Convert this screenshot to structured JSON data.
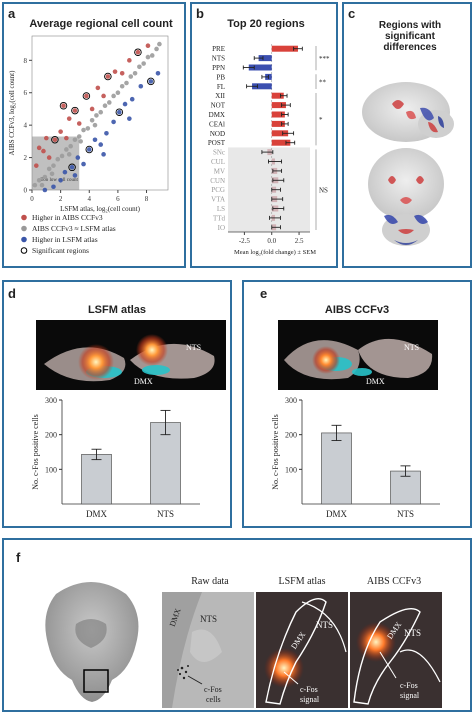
{
  "panel_a": {
    "label": "a",
    "title": "Average regional cell count",
    "ylabel": "AIBS CCFv3, log₂(cell count)",
    "xlabel": "LSFM atlas, log₂(cell count)",
    "box_annotation": "Too low cell count",
    "legend": [
      {
        "label": "Higher in AIBS CCFv3",
        "color": "#c0504d"
      },
      {
        "label": "AIBS CCFv3 ≈ LSFM atlas",
        "color": "#999999"
      },
      {
        "label": "Higher in LSFM atlas",
        "color": "#3a55a8"
      },
      {
        "label": "Significant regions",
        "color": "#000000"
      }
    ]
  },
  "panel_b": {
    "label": "b",
    "title": "Top 20 regions",
    "xlabel": "Mean log₂(fold change) ± SEM",
    "sig_marks": [
      "***",
      "**",
      "*",
      "NS"
    ]
  },
  "panel_c": {
    "label": "c",
    "title": "Regions with significant differences"
  },
  "panel_d": {
    "label": "d",
    "title": "LSFM atlas",
    "img_labels": {
      "nts": "NTS",
      "dmx": "DMX"
    },
    "ylabel": "No. c-Fos positive cells"
  },
  "panel_e": {
    "label": "e",
    "title": "AIBS CCFv3",
    "img_labels": {
      "nts": "NTS",
      "dmx": "DMX"
    },
    "ylabel": "No. c-Fos positive cells"
  },
  "panel_f": {
    "label": "f",
    "col_titles": [
      "Raw data",
      "LSFM atlas",
      "AIBS CCFv3"
    ],
    "raw": {
      "dmx": "DMX",
      "nts": "NTS",
      "cfos": "c-Fos",
      "cells": "cells"
    },
    "lsfm": {
      "dmx": "DMX",
      "nts": "NTS",
      "cfos": "c-Fos",
      "signal": "signal"
    },
    "aibs": {
      "dmx": "DMX",
      "nts": "NTS",
      "cfos": "c-Fos",
      "signal": "signal"
    }
  },
  "chart_data": [
    {
      "id": "a",
      "type": "scatter",
      "title": "Average regional cell count",
      "xlabel": "LSFM atlas, log₂(cell count)",
      "ylabel": "AIBS CCFv3, log₂(cell count)",
      "xlim": [
        0,
        9.5
      ],
      "ylim": [
        0,
        9.5
      ],
      "xticks": [
        0,
        2,
        4,
        6,
        8
      ],
      "yticks": [
        0,
        2,
        4,
        6,
        8
      ],
      "series": [
        {
          "name": "Higher in AIBS CCFv3",
          "points": [
            [
              0.3,
              1.5
            ],
            [
              0.8,
              2.4
            ],
            [
              1.2,
              2.0
            ],
            [
              1.6,
              3.1
            ],
            [
              2.0,
              3.6
            ],
            [
              2.4,
              3.2
            ],
            [
              2.6,
              4.4
            ],
            [
              3.0,
              4.9
            ],
            [
              3.3,
              4.1
            ],
            [
              3.8,
              5.8
            ],
            [
              4.2,
              5.0
            ],
            [
              4.6,
              6.3
            ],
            [
              5.0,
              5.8
            ],
            [
              5.3,
              7.0
            ],
            [
              5.8,
              7.3
            ],
            [
              6.3,
              7.2
            ],
            [
              6.8,
              8.0
            ],
            [
              7.4,
              8.5
            ],
            [
              8.1,
              8.9
            ],
            [
              1.0,
              3.2
            ],
            [
              2.2,
              5.2
            ],
            [
              0.5,
              2.6
            ]
          ]
        },
        {
          "name": "AIBS CCFv3 ≈ LSFM atlas",
          "points": [
            [
              0.2,
              0.3
            ],
            [
              0.5,
              0.6
            ],
            [
              0.9,
              0.8
            ],
            [
              1.2,
              1.3
            ],
            [
              1.5,
              1.5
            ],
            [
              1.8,
              1.9
            ],
            [
              2.1,
              2.1
            ],
            [
              2.4,
              2.5
            ],
            [
              2.7,
              2.7
            ],
            [
              3.0,
              3.1
            ],
            [
              3.3,
              3.3
            ],
            [
              3.6,
              3.7
            ],
            [
              3.9,
              3.8
            ],
            [
              4.2,
              4.3
            ],
            [
              4.5,
              4.6
            ],
            [
              4.8,
              4.8
            ],
            [
              5.1,
              5.2
            ],
            [
              5.4,
              5.4
            ],
            [
              5.7,
              5.8
            ],
            [
              6.0,
              6.0
            ],
            [
              6.3,
              6.4
            ],
            [
              6.6,
              6.6
            ],
            [
              6.9,
              7.0
            ],
            [
              7.2,
              7.2
            ],
            [
              7.5,
              7.6
            ],
            [
              7.8,
              7.8
            ],
            [
              8.1,
              8.2
            ],
            [
              8.4,
              8.3
            ],
            [
              8.7,
              8.7
            ],
            [
              8.9,
              9.0
            ],
            [
              0.7,
              0.3
            ],
            [
              1.4,
              1.0
            ],
            [
              2.6,
              2.2
            ],
            [
              3.4,
              3.0
            ],
            [
              4.4,
              4.0
            ]
          ]
        },
        {
          "name": "Higher in LSFM atlas",
          "points": [
            [
              0.9,
              0.0
            ],
            [
              1.5,
              0.2
            ],
            [
              2.0,
              0.6
            ],
            [
              2.3,
              1.1
            ],
            [
              2.8,
              1.4
            ],
            [
              3.2,
              2.0
            ],
            [
              3.6,
              1.6
            ],
            [
              4.0,
              2.5
            ],
            [
              4.4,
              3.1
            ],
            [
              4.8,
              2.8
            ],
            [
              5.2,
              3.5
            ],
            [
              5.7,
              4.2
            ],
            [
              6.1,
              4.8
            ],
            [
              6.5,
              5.3
            ],
            [
              7.0,
              5.6
            ],
            [
              7.6,
              6.4
            ],
            [
              8.3,
              6.7
            ],
            [
              8.8,
              7.2
            ],
            [
              3.0,
              0.9
            ],
            [
              5.0,
              2.2
            ],
            [
              6.8,
              4.4
            ]
          ]
        },
        {
          "name": "Significant regions",
          "points": [
            [
              1.6,
              3.1
            ],
            [
              3.0,
              4.9
            ],
            [
              2.2,
              5.2
            ],
            [
              3.8,
              5.8
            ],
            [
              5.3,
              7.0
            ],
            [
              7.4,
              8.5
            ],
            [
              2.8,
              1.4
            ],
            [
              4.0,
              2.5
            ],
            [
              6.1,
              4.8
            ],
            [
              8.3,
              6.7
            ]
          ]
        }
      ]
    },
    {
      "id": "b",
      "type": "bar",
      "title": "Top 20 regions",
      "xlabel": "Mean log₂(fold change) ± SEM",
      "xlim": [
        -4,
        3.5
      ],
      "xticks": [
        -2.5,
        0.0,
        2.5
      ],
      "categories": [
        "PRE",
        "NTS",
        "PPN",
        "PB",
        "FL",
        "XII",
        "NOT",
        "DMX",
        "CEAl",
        "NOD",
        "POST",
        "SNc",
        "CUL",
        "MV",
        "CUN",
        "PCG",
        "VTA",
        "LS",
        "TTd",
        "IO"
      ],
      "values": [
        2.4,
        -1.2,
        -2.1,
        -0.6,
        -1.8,
        1.1,
        1.3,
        1.2,
        1.2,
        1.5,
        1.7,
        -0.4,
        0.3,
        0.5,
        0.6,
        0.4,
        0.5,
        0.6,
        0.3,
        0.4
      ],
      "errors": [
        0.4,
        0.4,
        0.5,
        0.3,
        0.5,
        0.3,
        0.4,
        0.3,
        0.3,
        0.5,
        0.4,
        0.5,
        0.6,
        0.4,
        0.5,
        0.4,
        0.5,
        0.5,
        0.5,
        0.4
      ],
      "significant_count": 11
    },
    {
      "id": "d",
      "type": "bar",
      "title": "LSFM atlas",
      "ylabel": "No. c-Fos positive cells",
      "categories": [
        "DMX",
        "NTS"
      ],
      "values": [
        143,
        235
      ],
      "errors": [
        15,
        35
      ],
      "ylim": [
        0,
        300
      ],
      "yticks": [
        100,
        200,
        300
      ]
    },
    {
      "id": "e",
      "type": "bar",
      "title": "AIBS CCFv3",
      "ylabel": "No. c-Fos positive cells",
      "categories": [
        "DMX",
        "NTS"
      ],
      "values": [
        205,
        95
      ],
      "errors": [
        22,
        15
      ],
      "ylim": [
        0,
        300
      ],
      "yticks": [
        100,
        200,
        300
      ]
    }
  ]
}
